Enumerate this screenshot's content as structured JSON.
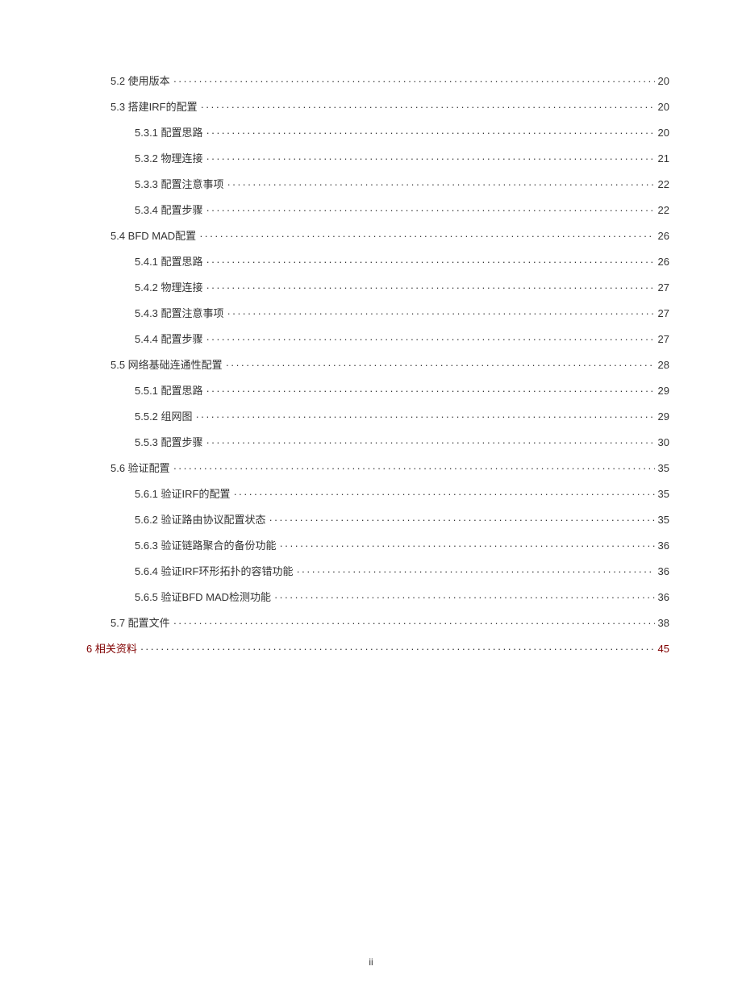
{
  "toc": {
    "entries": [
      {
        "level": 2,
        "label": "5.2 使用版本",
        "page": "20",
        "accent": false
      },
      {
        "level": 2,
        "label": "5.3 搭建IRF的配置",
        "page": "20",
        "accent": false
      },
      {
        "level": 3,
        "label": "5.3.1 配置思路",
        "page": "20",
        "accent": false
      },
      {
        "level": 3,
        "label": "5.3.2 物理连接",
        "page": "21",
        "accent": false
      },
      {
        "level": 3,
        "label": "5.3.3 配置注意事项",
        "page": "22",
        "accent": false
      },
      {
        "level": 3,
        "label": "5.3.4 配置步骤",
        "page": "22",
        "accent": false
      },
      {
        "level": 2,
        "label": "5.4 BFD MAD配置",
        "page": "26",
        "accent": false
      },
      {
        "level": 3,
        "label": "5.4.1 配置思路",
        "page": "26",
        "accent": false
      },
      {
        "level": 3,
        "label": "5.4.2 物理连接",
        "page": "27",
        "accent": false
      },
      {
        "level": 3,
        "label": "5.4.3 配置注意事项",
        "page": "27",
        "accent": false
      },
      {
        "level": 3,
        "label": "5.4.4 配置步骤",
        "page": "27",
        "accent": false
      },
      {
        "level": 2,
        "label": "5.5 网络基础连通性配置",
        "page": "28",
        "accent": false
      },
      {
        "level": 3,
        "label": "5.5.1 配置思路",
        "page": "29",
        "accent": false
      },
      {
        "level": 3,
        "label": "5.5.2 组网图",
        "page": "29",
        "accent": false
      },
      {
        "level": 3,
        "label": "5.5.3 配置步骤",
        "page": "30",
        "accent": false
      },
      {
        "level": 2,
        "label": "5.6 验证配置",
        "page": "35",
        "accent": false
      },
      {
        "level": 3,
        "label": "5.6.1 验证IRF的配置",
        "page": "35",
        "accent": false
      },
      {
        "level": 3,
        "label": "5.6.2 验证路由协议配置状态",
        "page": "35",
        "accent": false
      },
      {
        "level": 3,
        "label": "5.6.3 验证链路聚合的备份功能",
        "page": "36",
        "accent": false
      },
      {
        "level": 3,
        "label": "5.6.4 验证IRF环形拓扑的容错功能",
        "page": "36",
        "accent": false
      },
      {
        "level": 3,
        "label": "5.6.5 验证BFD MAD检测功能",
        "page": "36",
        "accent": false
      },
      {
        "level": 2,
        "label": "5.7 配置文件",
        "page": "38",
        "accent": false
      },
      {
        "level": 1,
        "label": "6 相关资料",
        "page": "45",
        "accent": true
      }
    ]
  },
  "footer": {
    "pageNumber": "ii"
  },
  "style": {
    "fontSize": 13,
    "textColor": "#333333",
    "accentColor": "#800000",
    "backgroundColor": "#ffffff",
    "lineSpacing": 13,
    "indentLevel2": 30,
    "indentLevel3": 60
  }
}
